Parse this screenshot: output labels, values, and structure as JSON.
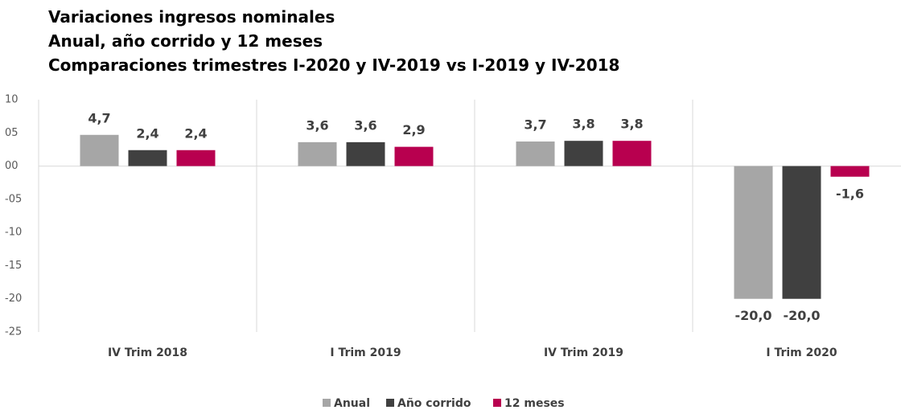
{
  "chart_data": {
    "type": "bar",
    "title": [
      "Variaciones ingresos nominales",
      "Anual, año corrido y 12 meses",
      "Comparaciones trimestres I-2020 y IV-2019 vs I-2019 y IV-2018"
    ],
    "categories": [
      "IV Trim 2018",
      "I Trim 2019",
      "IV Trim 2019",
      "I Trim 2020"
    ],
    "series": [
      {
        "name": "Anual",
        "color": "#a6a6a6",
        "values": [
          4.7,
          3.6,
          3.7,
          -20.0
        ],
        "value_labels": [
          "4,7",
          "3,6",
          "3,7",
          "-20,0"
        ]
      },
      {
        "name": "Año corrido",
        "color": "#404040",
        "values": [
          2.4,
          3.6,
          3.8,
          -20.0
        ],
        "value_labels": [
          "2,4",
          "3,6",
          "3,8",
          "-20,0"
        ]
      },
      {
        "name": "12 meses",
        "color": "#b8004f",
        "values": [
          2.4,
          2.9,
          3.8,
          -1.6
        ],
        "value_labels": [
          "2,4",
          "2,9",
          "3,8",
          "-1,6"
        ]
      }
    ],
    "ylim": [
      -25,
      10
    ],
    "yticks": [
      10,
      {
        "value": 5,
        "label": "05"
      },
      {
        "value": 0,
        "label": "00"
      },
      {
        "value": -5,
        "label": "-05"
      },
      -10,
      -15,
      -20,
      -25
    ],
    "grid": false,
    "legend": "bottom"
  }
}
